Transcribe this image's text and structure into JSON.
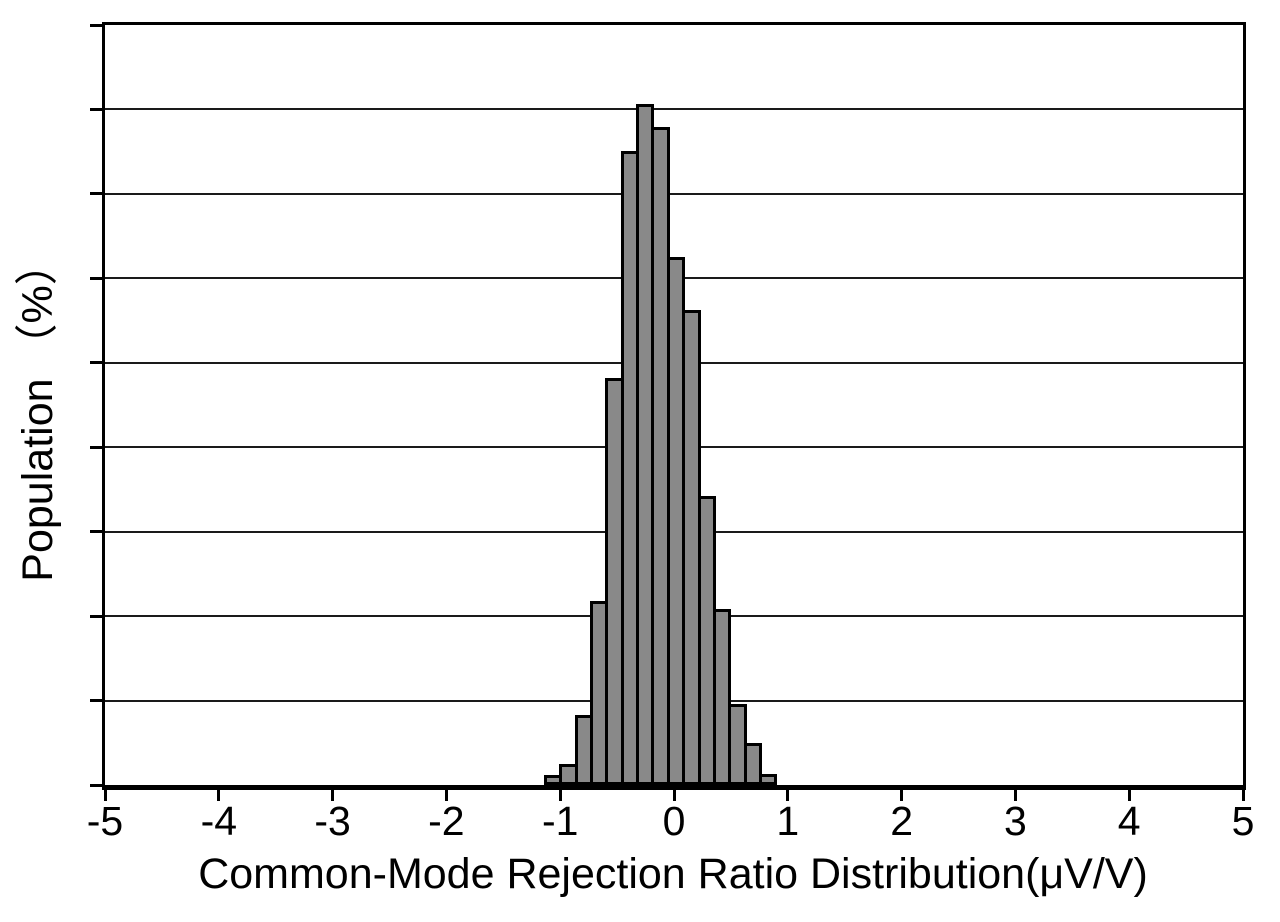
{
  "figure": {
    "background": "#ffffff"
  },
  "chart_data": {
    "type": "bar",
    "subtype": "histogram",
    "title": "",
    "xlabel": "Common-Mode Rejection Ratio Distribution(μV/V)",
    "ylabel": "Population （%）",
    "xlim": [
      -5,
      5
    ],
    "ylim": [
      0,
      18
    ],
    "x_tick_values": [
      -5,
      -4,
      -3,
      -2,
      -1,
      0,
      1,
      2,
      3,
      4,
      5
    ],
    "x_tick_labels": [
      "-5",
      "-4",
      "-3",
      "-2",
      "-1",
      "0",
      "1",
      "2",
      "3",
      "4",
      "5"
    ],
    "y_tick_step": 2,
    "y_gridline_values": [
      2,
      4,
      6,
      8,
      10,
      12,
      14,
      16
    ],
    "y_tick_labels_shown": false,
    "grid": "horizontal",
    "legend_position": "none",
    "bars": {
      "unit": "percent_population",
      "bin_start": -1.13,
      "bin_width": 0.135,
      "bin_centers": [
        -1.06,
        -0.93,
        -0.79,
        -0.66,
        -0.52,
        -0.39,
        -0.25,
        -0.12,
        0.02,
        0.15,
        0.29,
        0.42,
        0.56,
        0.69,
        0.83
      ],
      "values": [
        0.17,
        0.42,
        1.59,
        4.28,
        9.56,
        14.95,
        16.06,
        15.52,
        12.44,
        11.18,
        6.78,
        4.09,
        1.84,
        0.93,
        0.18
      ]
    },
    "colors": {
      "bar_fill": "#898989",
      "bar_edge": "#000000",
      "grid_line": "#1a1a1a",
      "axis": "#000000",
      "text": "#000000"
    }
  }
}
